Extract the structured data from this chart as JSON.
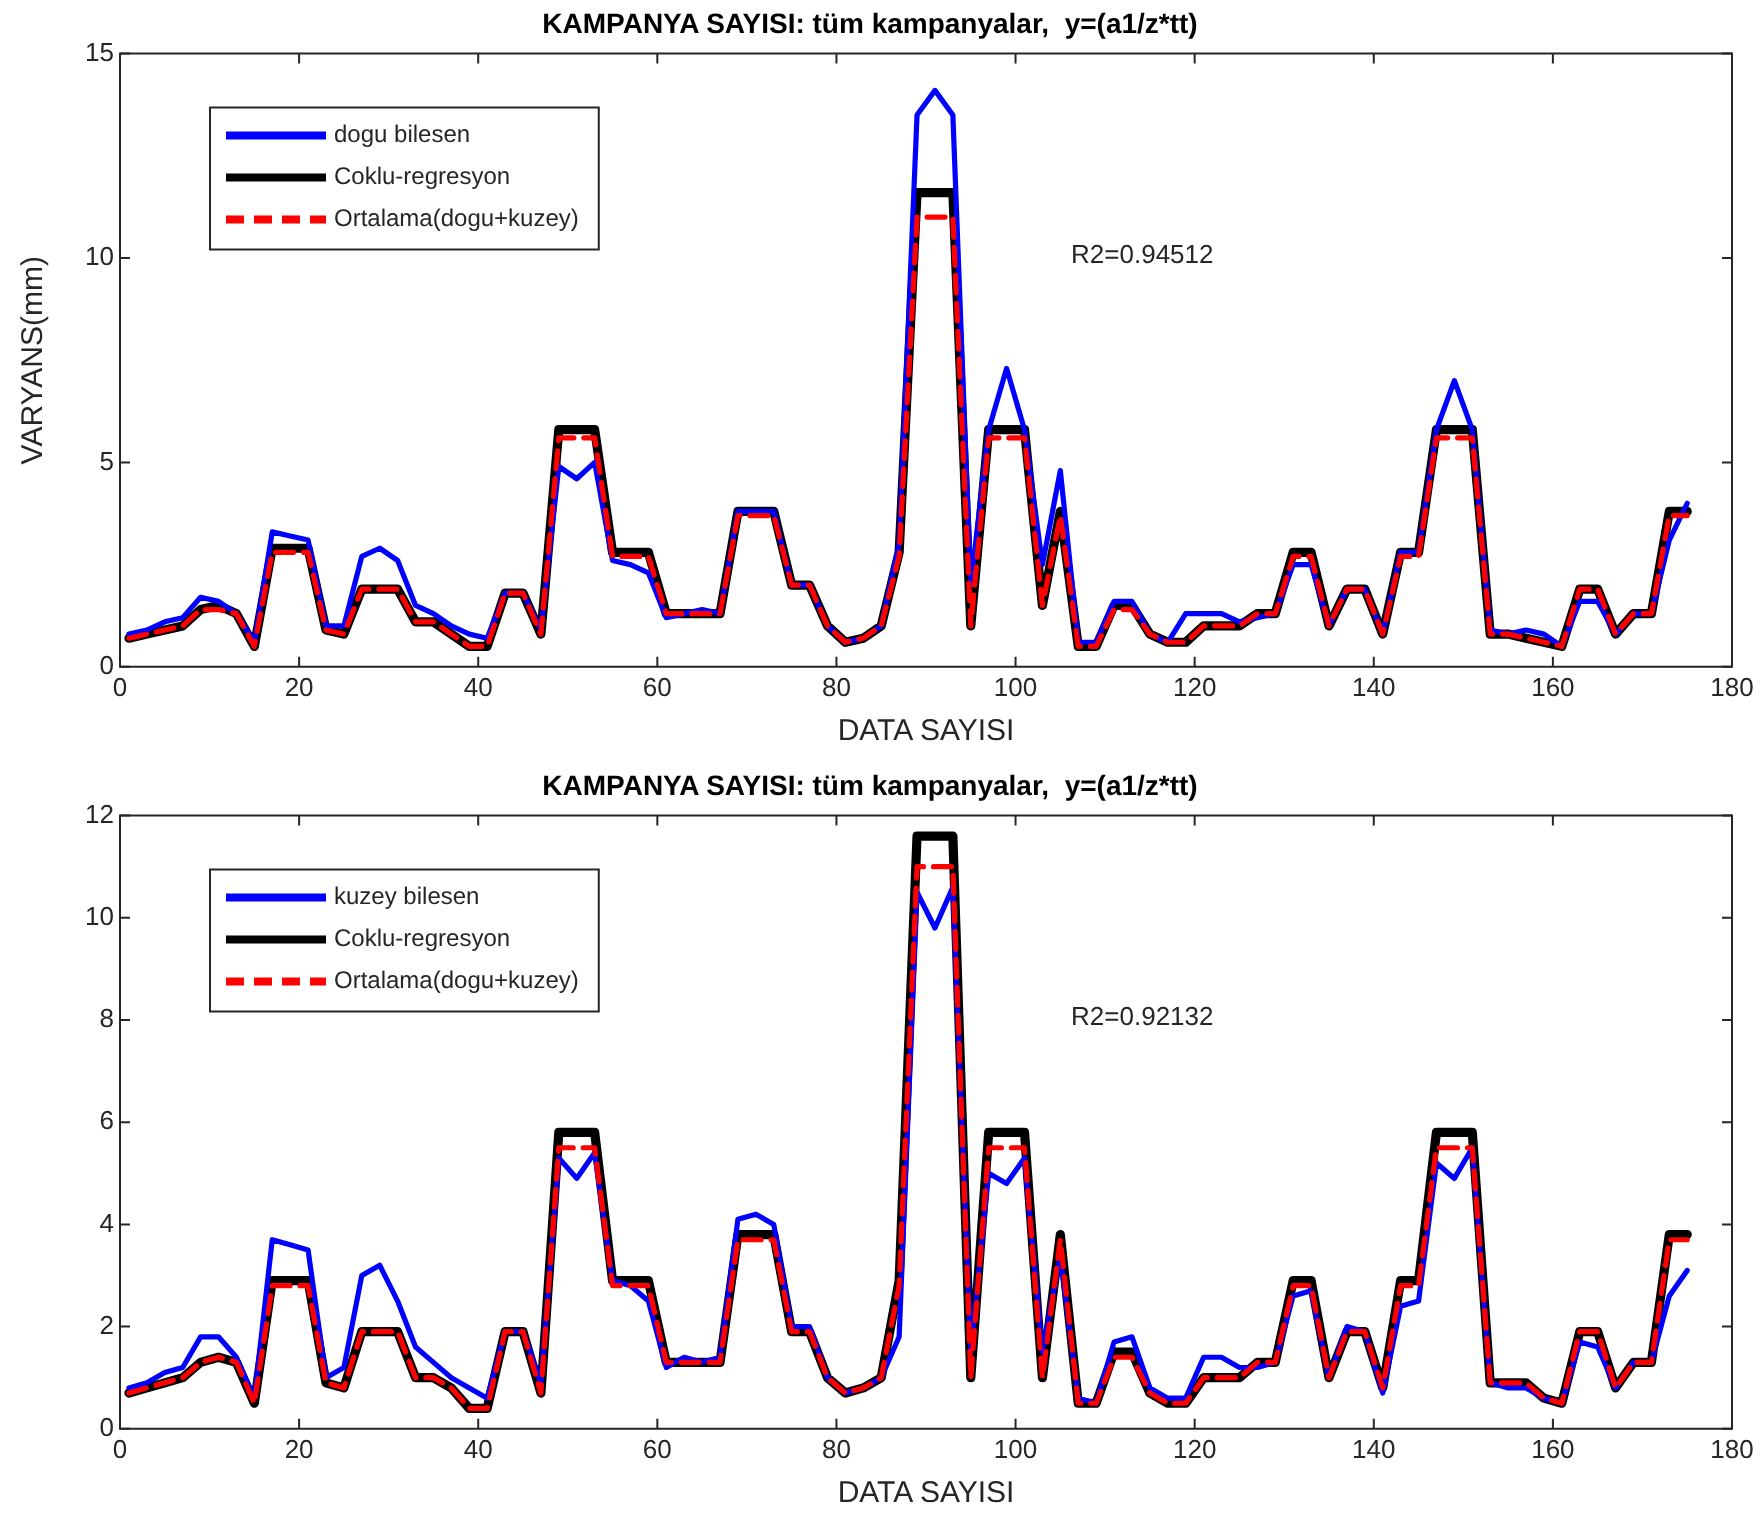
{
  "chart_data": [
    {
      "type": "line",
      "title": "KAMPANYA SAYISI: tüm kampanyalar,  y=(a1/z*tt)",
      "xlabel": "DATA SAYISI",
      "ylabel": "VARYANS(mm)",
      "annotations": [
        "R2=0.94512"
      ],
      "legend": "top left",
      "grid": false,
      "marker": "none",
      "xlim": [
        0,
        180
      ],
      "xticks": [
        0,
        20,
        40,
        60,
        80,
        100,
        120,
        140,
        160,
        180
      ],
      "ylim": [
        0,
        15
      ],
      "yticks": [
        0,
        5,
        10,
        15
      ],
      "x": [
        1,
        3,
        5,
        7,
        9,
        11,
        13,
        15,
        17,
        19,
        21,
        23,
        25,
        27,
        29,
        31,
        33,
        35,
        37,
        39,
        41,
        43,
        45,
        47,
        49,
        51,
        53,
        55,
        57,
        59,
        61,
        63,
        65,
        67,
        69,
        71,
        73,
        75,
        77,
        79,
        81,
        83,
        85,
        87,
        89,
        91,
        93,
        95,
        97,
        99,
        101,
        103,
        105,
        107,
        109,
        111,
        113,
        115,
        117,
        119,
        121,
        123,
        125,
        127,
        129,
        131,
        133,
        135,
        137,
        139,
        141,
        143,
        145,
        147,
        149,
        151,
        153,
        155,
        157,
        159,
        161,
        163,
        165,
        167,
        169,
        171,
        173,
        175
      ],
      "series": [
        {
          "name": "dogu bilesen",
          "color": "#0000ff",
          "line_style": "solid",
          "values": [
            0.8,
            0.9,
            1.1,
            1.2,
            1.7,
            1.6,
            1.3,
            0.6,
            3.3,
            3.2,
            3.1,
            1.0,
            1.0,
            2.7,
            2.9,
            2.6,
            1.5,
            1.3,
            1.0,
            0.8,
            0.7,
            1.8,
            1.8,
            0.9,
            4.9,
            4.6,
            5.0,
            2.6,
            2.5,
            2.3,
            1.2,
            1.3,
            1.4,
            1.3,
            3.8,
            3.8,
            3.8,
            2.0,
            2.0,
            1.0,
            0.6,
            0.7,
            1.0,
            3.0,
            13.5,
            14.1,
            13.5,
            2.0,
            5.8,
            7.3,
            5.8,
            2.5,
            4.8,
            0.6,
            0.6,
            1.6,
            1.6,
            0.8,
            0.6,
            1.3,
            1.3,
            1.3,
            1.1,
            1.2,
            1.3,
            2.5,
            2.5,
            1.0,
            1.9,
            1.9,
            0.8,
            2.8,
            2.8,
            5.8,
            7.0,
            5.8,
            0.9,
            0.8,
            0.9,
            0.8,
            0.5,
            1.6,
            1.6,
            0.8,
            1.3,
            1.3,
            3.1,
            4.0
          ]
        },
        {
          "name": "Coklu-regresyon",
          "color": "#000000",
          "line_style": "solid",
          "values": [
            0.7,
            0.8,
            0.9,
            1.0,
            1.4,
            1.5,
            1.3,
            0.5,
            2.9,
            2.9,
            2.9,
            0.9,
            0.8,
            1.9,
            1.9,
            1.9,
            1.1,
            1.1,
            0.8,
            0.5,
            0.5,
            1.8,
            1.8,
            0.8,
            5.8,
            5.8,
            5.8,
            2.8,
            2.8,
            2.8,
            1.3,
            1.3,
            1.3,
            1.3,
            3.8,
            3.8,
            3.8,
            2.0,
            2.0,
            1.0,
            0.6,
            0.7,
            1.0,
            2.8,
            11.6,
            11.6,
            11.6,
            1.0,
            5.8,
            5.8,
            5.8,
            1.5,
            3.8,
            0.5,
            0.5,
            1.5,
            1.5,
            0.8,
            0.6,
            0.6,
            1.0,
            1.0,
            1.0,
            1.3,
            1.3,
            2.8,
            2.8,
            1.0,
            1.9,
            1.9,
            0.8,
            2.8,
            2.8,
            5.8,
            5.8,
            5.8,
            0.8,
            0.8,
            0.7,
            0.6,
            0.5,
            1.9,
            1.9,
            0.8,
            1.3,
            1.3,
            3.8,
            3.8
          ]
        },
        {
          "name": "Ortalama(dogu+kuzey)",
          "color": "#ff0000",
          "line_style": "dashed",
          "values": [
            0.7,
            0.8,
            0.9,
            1.0,
            1.4,
            1.4,
            1.3,
            0.5,
            2.8,
            2.8,
            2.8,
            0.9,
            0.8,
            1.9,
            1.9,
            1.9,
            1.1,
            1.1,
            0.8,
            0.5,
            0.5,
            1.8,
            1.8,
            0.8,
            5.6,
            5.6,
            5.6,
            2.7,
            2.7,
            2.7,
            1.3,
            1.3,
            1.3,
            1.3,
            3.7,
            3.7,
            3.7,
            2.0,
            2.0,
            1.0,
            0.6,
            0.7,
            1.0,
            2.7,
            11.0,
            11.0,
            11.0,
            1.0,
            5.6,
            5.6,
            5.6,
            1.5,
            3.7,
            0.5,
            0.5,
            1.4,
            1.4,
            0.8,
            0.6,
            0.6,
            1.0,
            1.0,
            1.0,
            1.3,
            1.3,
            2.7,
            2.7,
            1.0,
            1.9,
            1.9,
            0.8,
            2.7,
            2.7,
            5.6,
            5.6,
            5.6,
            0.8,
            0.8,
            0.7,
            0.6,
            0.5,
            1.9,
            1.9,
            0.8,
            1.3,
            1.3,
            3.7,
            3.7
          ]
        }
      ]
    },
    {
      "type": "line",
      "title": "KAMPANYA SAYISI: tüm kampanyalar,  y=(a1/z*tt)",
      "xlabel": "DATA SAYISI",
      "annotations": [
        "R2=0.92132"
      ],
      "legend": "top left",
      "grid": false,
      "marker": "none",
      "xlim": [
        0,
        180
      ],
      "xticks": [
        0,
        20,
        40,
        60,
        80,
        100,
        120,
        140,
        160,
        180
      ],
      "ylim": [
        0,
        12
      ],
      "yticks": [
        0,
        2,
        4,
        6,
        8,
        10,
        12
      ],
      "x": [
        1,
        3,
        5,
        7,
        9,
        11,
        13,
        15,
        17,
        19,
        21,
        23,
        25,
        27,
        29,
        31,
        33,
        35,
        37,
        39,
        41,
        43,
        45,
        47,
        49,
        51,
        53,
        55,
        57,
        59,
        61,
        63,
        65,
        67,
        69,
        71,
        73,
        75,
        77,
        79,
        81,
        83,
        85,
        87,
        89,
        91,
        93,
        95,
        97,
        99,
        101,
        103,
        105,
        107,
        109,
        111,
        113,
        115,
        117,
        119,
        121,
        123,
        125,
        127,
        129,
        131,
        133,
        135,
        137,
        139,
        141,
        143,
        145,
        147,
        149,
        151,
        153,
        155,
        157,
        159,
        161,
        163,
        165,
        167,
        169,
        171,
        173,
        175
      ],
      "series": [
        {
          "name": "kuzey bilesen",
          "color": "#0000ff",
          "line_style": "solid",
          "values": [
            0.8,
            0.9,
            1.1,
            1.2,
            1.8,
            1.8,
            1.4,
            0.6,
            3.7,
            3.6,
            3.5,
            1.0,
            1.2,
            3.0,
            3.2,
            2.5,
            1.6,
            1.3,
            1.0,
            0.8,
            0.6,
            1.9,
            1.9,
            0.9,
            5.3,
            4.9,
            5.4,
            2.9,
            2.8,
            2.5,
            1.2,
            1.4,
            1.3,
            1.4,
            4.1,
            4.2,
            4.0,
            2.0,
            2.0,
            1.0,
            0.7,
            0.8,
            1.0,
            1.8,
            10.5,
            9.8,
            10.6,
            1.5,
            5.0,
            4.8,
            5.3,
            1.5,
            3.4,
            0.6,
            0.5,
            1.7,
            1.8,
            0.8,
            0.6,
            0.6,
            1.4,
            1.4,
            1.2,
            1.2,
            1.3,
            2.6,
            2.7,
            1.0,
            2.0,
            1.9,
            0.7,
            2.4,
            2.5,
            5.2,
            4.9,
            5.5,
            0.9,
            0.8,
            0.8,
            0.6,
            0.5,
            1.7,
            1.6,
            0.8,
            1.3,
            1.3,
            2.6,
            3.1
          ]
        },
        {
          "name": "Coklu-regresyon",
          "color": "#000000",
          "line_style": "solid",
          "values": [
            0.7,
            0.8,
            0.9,
            1.0,
            1.3,
            1.4,
            1.3,
            0.5,
            2.9,
            2.9,
            2.9,
            0.9,
            0.8,
            1.9,
            1.9,
            1.9,
            1.0,
            1.0,
            0.8,
            0.4,
            0.4,
            1.9,
            1.9,
            0.7,
            5.8,
            5.8,
            5.8,
            2.9,
            2.9,
            2.9,
            1.3,
            1.3,
            1.3,
            1.3,
            3.8,
            3.8,
            3.8,
            1.9,
            1.9,
            1.0,
            0.7,
            0.8,
            1.0,
            2.9,
            11.6,
            11.6,
            11.6,
            1.0,
            5.8,
            5.8,
            5.8,
            1.0,
            3.8,
            0.5,
            0.5,
            1.5,
            1.5,
            0.7,
            0.5,
            0.5,
            1.0,
            1.0,
            1.0,
            1.3,
            1.3,
            2.9,
            2.9,
            1.0,
            1.9,
            1.9,
            0.8,
            2.9,
            2.9,
            5.8,
            5.8,
            5.8,
            0.9,
            0.9,
            0.9,
            0.6,
            0.5,
            1.9,
            1.9,
            0.8,
            1.3,
            1.3,
            3.8,
            3.8
          ]
        },
        {
          "name": "Ortalama(dogu+kuzey)",
          "color": "#ff0000",
          "line_style": "dashed",
          "values": [
            0.7,
            0.8,
            0.9,
            1.0,
            1.3,
            1.4,
            1.3,
            0.5,
            2.8,
            2.8,
            2.8,
            0.9,
            0.8,
            1.9,
            1.9,
            1.9,
            1.0,
            1.0,
            0.8,
            0.4,
            0.4,
            1.9,
            1.9,
            0.7,
            5.5,
            5.5,
            5.5,
            2.8,
            2.8,
            2.8,
            1.3,
            1.3,
            1.3,
            1.3,
            3.7,
            3.7,
            3.7,
            1.9,
            1.9,
            1.0,
            0.7,
            0.8,
            1.0,
            2.8,
            11.0,
            11.0,
            11.0,
            1.0,
            5.5,
            5.5,
            5.5,
            1.0,
            3.7,
            0.5,
            0.5,
            1.4,
            1.4,
            0.7,
            0.5,
            0.5,
            1.0,
            1.0,
            1.0,
            1.3,
            1.3,
            2.8,
            2.8,
            1.0,
            1.9,
            1.9,
            0.8,
            2.8,
            2.8,
            5.5,
            5.5,
            5.5,
            0.9,
            0.9,
            0.9,
            0.6,
            0.5,
            1.9,
            1.9,
            0.8,
            1.3,
            1.3,
            3.7,
            3.7
          ]
        }
      ]
    }
  ]
}
